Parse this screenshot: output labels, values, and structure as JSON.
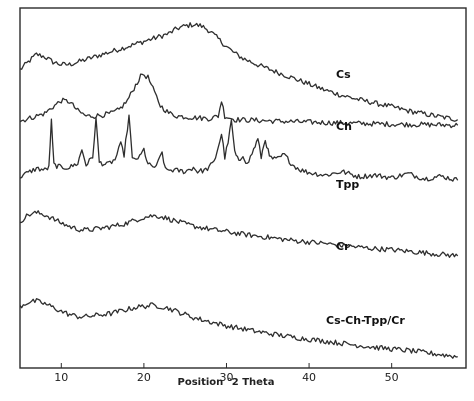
{
  "chart_data": {
    "type": "line",
    "title": "",
    "xlabel": "Position °2 Theta",
    "ylabel": "",
    "xlim": [
      5,
      59
    ],
    "xticks": [
      10,
      20,
      30,
      40,
      50
    ],
    "grid": false,
    "legend": "none",
    "series": [
      {
        "name": "Cs",
        "offset": 4,
        "points": [
          [
            5,
            2.9
          ],
          [
            6,
            3.05
          ],
          [
            7,
            3.2
          ],
          [
            8,
            3.15
          ],
          [
            9,
            3.05
          ],
          [
            10,
            3.0
          ],
          [
            11,
            3.0
          ],
          [
            12,
            3.05
          ],
          [
            13,
            3.1
          ],
          [
            14,
            3.15
          ],
          [
            15,
            3.2
          ],
          [
            16,
            3.25
          ],
          [
            17,
            3.3
          ],
          [
            18,
            3.35
          ],
          [
            19,
            3.4
          ],
          [
            20,
            3.45
          ],
          [
            21,
            3.5
          ],
          [
            22,
            3.55
          ],
          [
            23,
            3.6
          ],
          [
            24,
            3.7
          ],
          [
            25,
            3.75
          ],
          [
            26,
            3.78
          ],
          [
            27,
            3.75
          ],
          [
            28,
            3.65
          ],
          [
            29,
            3.5
          ],
          [
            30,
            3.35
          ],
          [
            31,
            3.22
          ],
          [
            32,
            3.12
          ],
          [
            33,
            3.05
          ],
          [
            34,
            2.98
          ],
          [
            35,
            2.92
          ],
          [
            36,
            2.86
          ],
          [
            37,
            2.8
          ],
          [
            38,
            2.74
          ],
          [
            40,
            2.62
          ],
          [
            42,
            2.5
          ],
          [
            44,
            2.4
          ],
          [
            46,
            2.32
          ],
          [
            48,
            2.25
          ],
          [
            50,
            2.18
          ],
          [
            52,
            2.1
          ],
          [
            54,
            2.04
          ],
          [
            56,
            1.98
          ],
          [
            58,
            1.93
          ]
        ]
      },
      {
        "name": "Ch",
        "offset": 3,
        "points": [
          [
            5,
            1.9
          ],
          [
            6,
            1.95
          ],
          [
            7,
            2.0
          ],
          [
            8,
            2.05
          ],
          [
            9,
            2.18
          ],
          [
            10,
            2.3
          ],
          [
            11,
            2.28
          ],
          [
            12,
            2.1
          ],
          [
            13,
            2.0
          ],
          [
            14,
            2.0
          ],
          [
            15,
            2.02
          ],
          [
            16,
            2.05
          ],
          [
            17,
            2.12
          ],
          [
            18,
            2.3
          ],
          [
            19,
            2.6
          ],
          [
            19.8,
            2.82
          ],
          [
            20.5,
            2.75
          ],
          [
            21.3,
            2.45
          ],
          [
            22,
            2.2
          ],
          [
            23,
            2.06
          ],
          [
            24,
            2.0
          ],
          [
            26,
            1.97
          ],
          [
            28,
            1.95
          ],
          [
            29,
            2.0
          ],
          [
            29.4,
            2.3
          ],
          [
            29.8,
            2.0
          ],
          [
            31,
            1.93
          ],
          [
            33,
            1.92
          ],
          [
            36,
            1.9
          ],
          [
            40,
            1.88
          ],
          [
            45,
            1.86
          ],
          [
            50,
            1.84
          ],
          [
            55,
            1.83
          ],
          [
            58,
            1.82
          ]
        ]
      },
      {
        "name": "Tpp",
        "offset": 2,
        "points": [
          [
            5,
            0.82
          ],
          [
            6,
            0.9
          ],
          [
            7,
            0.98
          ],
          [
            8,
            0.95
          ],
          [
            8.5,
            1.0
          ],
          [
            8.8,
            1.9
          ],
          [
            9.1,
            1.05
          ],
          [
            10,
            1.0
          ],
          [
            11,
            1.0
          ],
          [
            12,
            1.08
          ],
          [
            12.5,
            1.35
          ],
          [
            13,
            1.05
          ],
          [
            13.8,
            1.2
          ],
          [
            14.2,
            1.95
          ],
          [
            14.6,
            1.1
          ],
          [
            15.5,
            1.05
          ],
          [
            16.5,
            1.15
          ],
          [
            17.2,
            1.45
          ],
          [
            17.6,
            1.25
          ],
          [
            18.2,
            2.0
          ],
          [
            18.6,
            1.15
          ],
          [
            19.5,
            1.2
          ],
          [
            20,
            1.35
          ],
          [
            20.5,
            1.05
          ],
          [
            21.5,
            1.0
          ],
          [
            22.2,
            1.3
          ],
          [
            22.6,
            0.95
          ],
          [
            23.5,
            0.95
          ],
          [
            25,
            0.92
          ],
          [
            26,
            1.0
          ],
          [
            26.5,
            0.92
          ],
          [
            27.5,
            0.95
          ],
          [
            28.5,
            1.1
          ],
          [
            29,
            1.4
          ],
          [
            29.4,
            1.65
          ],
          [
            29.8,
            1.2
          ],
          [
            30.2,
            1.5
          ],
          [
            30.6,
            1.9
          ],
          [
            31,
            1.3
          ],
          [
            31.5,
            1.1
          ],
          [
            32,
            1.25
          ],
          [
            32.5,
            1.05
          ],
          [
            33.3,
            1.35
          ],
          [
            33.8,
            1.55
          ],
          [
            34.2,
            1.2
          ],
          [
            34.7,
            1.55
          ],
          [
            35.2,
            1.2
          ],
          [
            36,
            1.15
          ],
          [
            37,
            1.25
          ],
          [
            38,
            1.05
          ],
          [
            39,
            0.95
          ],
          [
            40,
            0.9
          ],
          [
            42,
            0.85
          ],
          [
            44,
            0.92
          ],
          [
            46,
            0.82
          ],
          [
            48,
            0.85
          ],
          [
            50,
            0.8
          ],
          [
            52,
            0.88
          ],
          [
            54,
            0.78
          ],
          [
            56,
            0.83
          ],
          [
            58,
            0.75
          ]
        ]
      },
      {
        "name": "Cr",
        "offset": 1,
        "points": [
          [
            5,
            -0.05
          ],
          [
            6,
            0.08
          ],
          [
            7,
            0.12
          ],
          [
            8,
            0.08
          ],
          [
            9,
            0.0
          ],
          [
            10,
            -0.08
          ],
          [
            11,
            -0.15
          ],
          [
            12,
            -0.2
          ],
          [
            13,
            -0.22
          ],
          [
            14,
            -0.2
          ],
          [
            15,
            -0.18
          ],
          [
            16,
            -0.15
          ],
          [
            17,
            -0.12
          ],
          [
            18,
            -0.08
          ],
          [
            19,
            -0.02
          ],
          [
            20,
            0.03
          ],
          [
            21,
            0.06
          ],
          [
            22,
            0.05
          ],
          [
            23,
            0.0
          ],
          [
            24,
            -0.05
          ],
          [
            25,
            -0.1
          ],
          [
            26,
            -0.14
          ],
          [
            28,
            -0.2
          ],
          [
            30,
            -0.25
          ],
          [
            32,
            -0.3
          ],
          [
            34,
            -0.34
          ],
          [
            36,
            -0.38
          ],
          [
            38,
            -0.42
          ],
          [
            40,
            -0.45
          ],
          [
            42,
            -0.48
          ],
          [
            44,
            -0.52
          ],
          [
            46,
            -0.55
          ],
          [
            48,
            -0.58
          ],
          [
            50,
            -0.6
          ],
          [
            52,
            -0.63
          ],
          [
            54,
            -0.66
          ],
          [
            56,
            -0.69
          ],
          [
            58,
            -0.72
          ]
        ]
      },
      {
        "name": "Cs-Ch-Tpp/Cr",
        "offset": 0,
        "points": [
          [
            5,
            -1.7
          ],
          [
            6,
            -1.62
          ],
          [
            7,
            -1.6
          ],
          [
            8,
            -1.65
          ],
          [
            9,
            -1.72
          ],
          [
            10,
            -1.8
          ],
          [
            11,
            -1.86
          ],
          [
            12,
            -1.9
          ],
          [
            13,
            -1.9
          ],
          [
            14,
            -1.88
          ],
          [
            15,
            -1.86
          ],
          [
            16,
            -1.84
          ],
          [
            17,
            -1.8
          ],
          [
            18,
            -1.76
          ],
          [
            19,
            -1.72
          ],
          [
            20,
            -1.7
          ],
          [
            21,
            -1.68
          ],
          [
            22,
            -1.7
          ],
          [
            23,
            -1.74
          ],
          [
            24,
            -1.8
          ],
          [
            25,
            -1.86
          ],
          [
            26,
            -1.92
          ],
          [
            28,
            -2.0
          ],
          [
            30,
            -2.08
          ],
          [
            32,
            -2.14
          ],
          [
            34,
            -2.2
          ],
          [
            36,
            -2.25
          ],
          [
            38,
            -2.3
          ],
          [
            40,
            -2.34
          ],
          [
            42,
            -2.38
          ],
          [
            44,
            -2.42
          ],
          [
            46,
            -2.46
          ],
          [
            48,
            -2.5
          ],
          [
            50,
            -2.53
          ],
          [
            52,
            -2.56
          ],
          [
            54,
            -2.6
          ],
          [
            56,
            -2.64
          ],
          [
            58,
            -2.68
          ]
        ]
      }
    ]
  }
}
